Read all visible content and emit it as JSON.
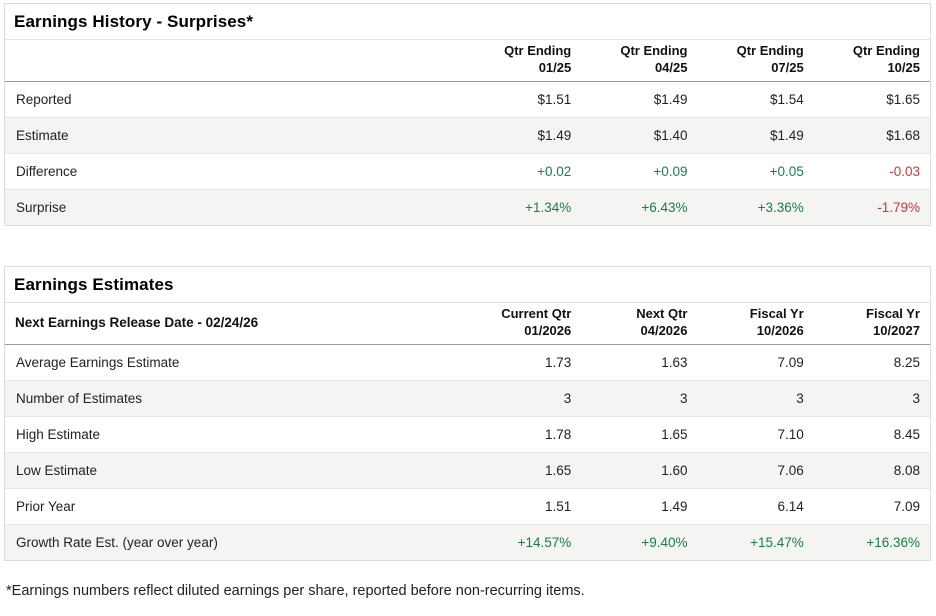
{
  "colors": {
    "positive_green": "#1b7e45",
    "negative_red": "#c43a3a",
    "row_alt_bg": "#f4f4f3",
    "border_light": "#e2e2e2",
    "header_rule": "#9b9b9b"
  },
  "earnings_history": {
    "title": "Earnings History - Surprises*",
    "columns": [
      {
        "line1": "Qtr Ending",
        "line2": "01/25"
      },
      {
        "line1": "Qtr Ending",
        "line2": "04/25"
      },
      {
        "line1": "Qtr Ending",
        "line2": "07/25"
      },
      {
        "line1": "Qtr Ending",
        "line2": "10/25"
      }
    ],
    "rows": [
      {
        "label": "Reported",
        "values": [
          "$1.51",
          "$1.49",
          "$1.54",
          "$1.65"
        ],
        "tones": [
          "neutral",
          "neutral",
          "neutral",
          "neutral"
        ]
      },
      {
        "label": "Estimate",
        "values": [
          "$1.49",
          "$1.40",
          "$1.49",
          "$1.68"
        ],
        "tones": [
          "neutral",
          "neutral",
          "neutral",
          "neutral"
        ]
      },
      {
        "label": "Difference",
        "values": [
          "+0.02",
          "+0.09",
          "+0.05",
          "-0.03"
        ],
        "tones": [
          "positive",
          "positive",
          "positive",
          "negative"
        ]
      },
      {
        "label": "Surprise",
        "values": [
          "+1.34%",
          "+6.43%",
          "+3.36%",
          "-1.79%"
        ],
        "tones": [
          "positive",
          "positive",
          "positive",
          "negative"
        ]
      }
    ]
  },
  "earnings_estimates": {
    "title": "Earnings Estimates",
    "header_label": "Next Earnings Release Date - 02/24/26",
    "columns": [
      {
        "line1": "Current Qtr",
        "line2": "01/2026"
      },
      {
        "line1": "Next Qtr",
        "line2": "04/2026"
      },
      {
        "line1": "Fiscal Yr",
        "line2": "10/2026"
      },
      {
        "line1": "Fiscal Yr",
        "line2": "10/2027"
      }
    ],
    "rows": [
      {
        "label": "Average Earnings Estimate",
        "values": [
          "1.73",
          "1.63",
          "7.09",
          "8.25"
        ],
        "tones": [
          "neutral",
          "neutral",
          "neutral",
          "neutral"
        ]
      },
      {
        "label": "Number of Estimates",
        "values": [
          "3",
          "3",
          "3",
          "3"
        ],
        "tones": [
          "neutral",
          "neutral",
          "neutral",
          "neutral"
        ]
      },
      {
        "label": "High Estimate",
        "values": [
          "1.78",
          "1.65",
          "7.10",
          "8.45"
        ],
        "tones": [
          "neutral",
          "neutral",
          "neutral",
          "neutral"
        ]
      },
      {
        "label": "Low Estimate",
        "values": [
          "1.65",
          "1.60",
          "7.06",
          "8.08"
        ],
        "tones": [
          "neutral",
          "neutral",
          "neutral",
          "neutral"
        ]
      },
      {
        "label": "Prior Year",
        "values": [
          "1.51",
          "1.49",
          "6.14",
          "7.09"
        ],
        "tones": [
          "neutral",
          "neutral",
          "neutral",
          "neutral"
        ]
      },
      {
        "label": "Growth Rate Est. (year over year)",
        "values": [
          "+14.57%",
          "+9.40%",
          "+15.47%",
          "+16.36%"
        ],
        "tones": [
          "positive",
          "positive",
          "positive",
          "positive"
        ]
      }
    ]
  },
  "footnote": "*Earnings numbers reflect diluted earnings per share, reported before non-recurring items."
}
